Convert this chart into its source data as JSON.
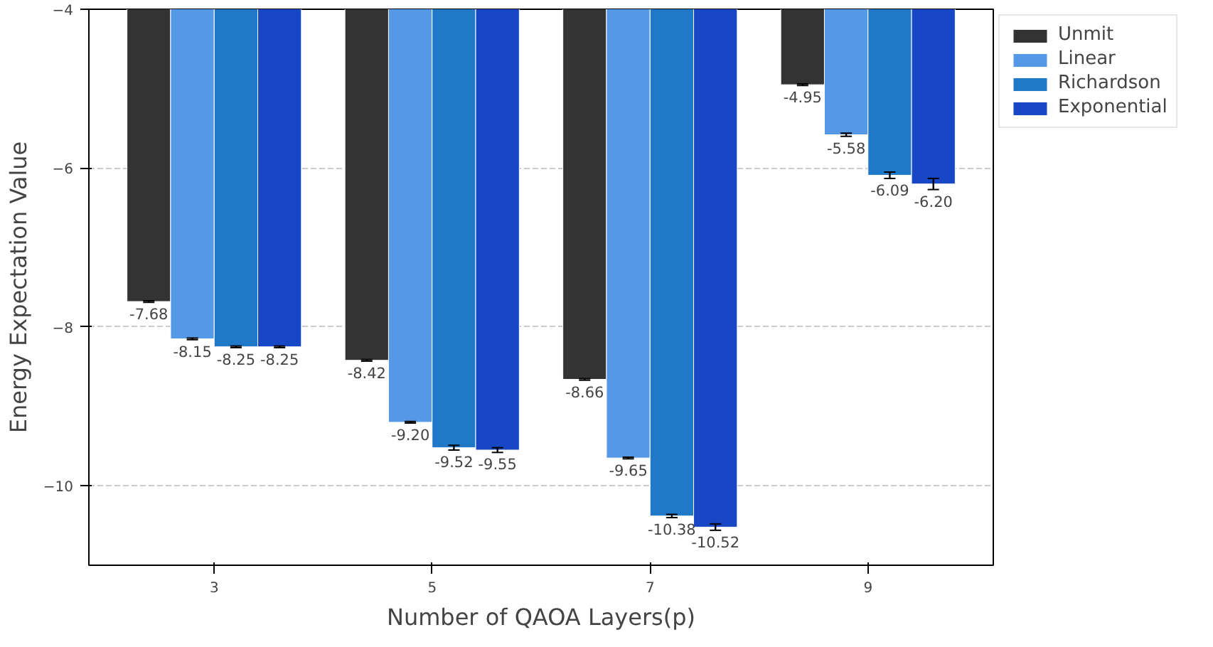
{
  "chart_data": {
    "type": "bar",
    "xlabel": "Number of QAOA Layers(p)",
    "ylabel": "Energy Expectation Value",
    "x": [
      3,
      5,
      7,
      9
    ],
    "xlim": [
      1.85,
      10.15
    ],
    "xticks": [
      3,
      5,
      7,
      9
    ],
    "ylim": [
      -11,
      -4
    ],
    "yticks": [
      -10,
      -8,
      -6,
      -4
    ],
    "series": [
      {
        "name": "Unmit",
        "color": "#333333",
        "values": [
          -7.68,
          -8.42,
          -8.66,
          -4.95
        ],
        "value_labels": [
          "-7.68",
          "-8.42",
          "-8.66",
          "-4.95"
        ],
        "errors": [
          0.01,
          0.01,
          0.01,
          0.01
        ]
      },
      {
        "name": "Linear",
        "color": "#5599e6",
        "values": [
          -8.15,
          -9.2,
          -9.65,
          -5.58
        ],
        "value_labels": [
          "-8.15",
          "-9.20",
          "-9.65",
          "-5.58"
        ],
        "errors": [
          0.01,
          0.01,
          0.01,
          0.02
        ]
      },
      {
        "name": "Richardson",
        "color": "#1f78c8",
        "values": [
          -8.25,
          -9.52,
          -10.38,
          -6.09
        ],
        "value_labels": [
          "-8.25",
          "-9.52",
          "-10.38",
          "-6.09"
        ],
        "errors": [
          0.01,
          0.03,
          0.02,
          0.04
        ]
      },
      {
        "name": "Exponential",
        "color": "#1747c4",
        "values": [
          -8.25,
          -9.55,
          -10.52,
          -6.2
        ],
        "value_labels": [
          "-8.25",
          "-9.55",
          "-10.52",
          "-6.20"
        ],
        "errors": [
          0.01,
          0.03,
          0.04,
          0.07
        ]
      }
    ],
    "grid": "y",
    "legend": "top right"
  }
}
